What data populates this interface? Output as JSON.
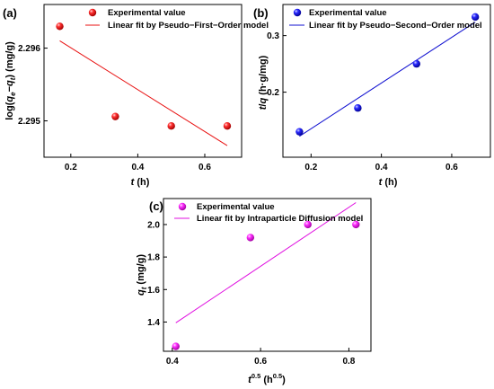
{
  "figure": {
    "panels": [
      {
        "label": "(a)"
      },
      {
        "label": "(b)"
      },
      {
        "label": "(c)"
      }
    ]
  },
  "chart_data": [
    {
      "panel": "(a)",
      "type": "scatter",
      "xlabel": "t (h)",
      "ylabel": "log(qe−qt) (mg/g)",
      "xlim": [
        0.12,
        0.71
      ],
      "ylim": [
        2.2945,
        2.2966
      ],
      "xticks": [
        0.2,
        0.4,
        0.6
      ],
      "yticks": [
        2.295,
        2.296
      ],
      "legend_placement": "top-right",
      "series": [
        {
          "name": "Experimental value",
          "kind": "points",
          "color": "#e81010",
          "x": [
            0.167,
            0.333,
            0.5,
            0.667
          ],
          "y": [
            2.2963,
            2.29506,
            2.29493,
            2.29493
          ]
        },
        {
          "name": "Linear fit by Pseudo−First−Order model",
          "kind": "line",
          "color": "#e81010",
          "x": [
            0.167,
            0.667
          ],
          "y": [
            2.2961,
            2.29466
          ]
        }
      ]
    },
    {
      "panel": "(b)",
      "type": "scatter",
      "xlabel": "t (h)",
      "ylabel": "t/q (h·g/mg)",
      "xlim": [
        0.12,
        0.71
      ],
      "ylim": [
        0.085,
        0.355
      ],
      "xticks": [
        0.2,
        0.4,
        0.6
      ],
      "yticks": [
        0.2,
        0.3
      ],
      "legend_placement": "top-right",
      "series": [
        {
          "name": "Experimental value",
          "kind": "points",
          "color": "#1010d0",
          "x": [
            0.167,
            0.333,
            0.5,
            0.667
          ],
          "y": [
            0.13,
            0.172,
            0.25,
            0.333
          ]
        },
        {
          "name": "Linear fit by Pseudo−Second−Order model",
          "kind": "line",
          "color": "#1010d0",
          "x": [
            0.167,
            0.667
          ],
          "y": [
            0.122,
            0.324
          ]
        }
      ]
    },
    {
      "panel": "(c)",
      "type": "scatter",
      "xlabel": "t0.5 (h0.5)",
      "ylabel": "qt (mg/g)",
      "xlim": [
        0.38,
        0.85
      ],
      "ylim": [
        1.22,
        2.16
      ],
      "xticks": [
        0.4,
        0.6,
        0.8
      ],
      "yticks": [
        1.4,
        1.6,
        1.8,
        2.0
      ],
      "legend_placement": "top-left",
      "series": [
        {
          "name": "Experimental value",
          "kind": "points",
          "color": "#e010e0",
          "x": [
            0.408,
            0.577,
            0.707,
            0.816
          ],
          "y": [
            1.25,
            1.92,
            2.0,
            2.0
          ]
        },
        {
          "name": "Linear fit by Intraparticle Diffusion model",
          "kind": "line",
          "color": "#e010e0",
          "x": [
            0.408,
            0.816
          ],
          "y": [
            1.395,
            2.135
          ]
        }
      ]
    }
  ]
}
